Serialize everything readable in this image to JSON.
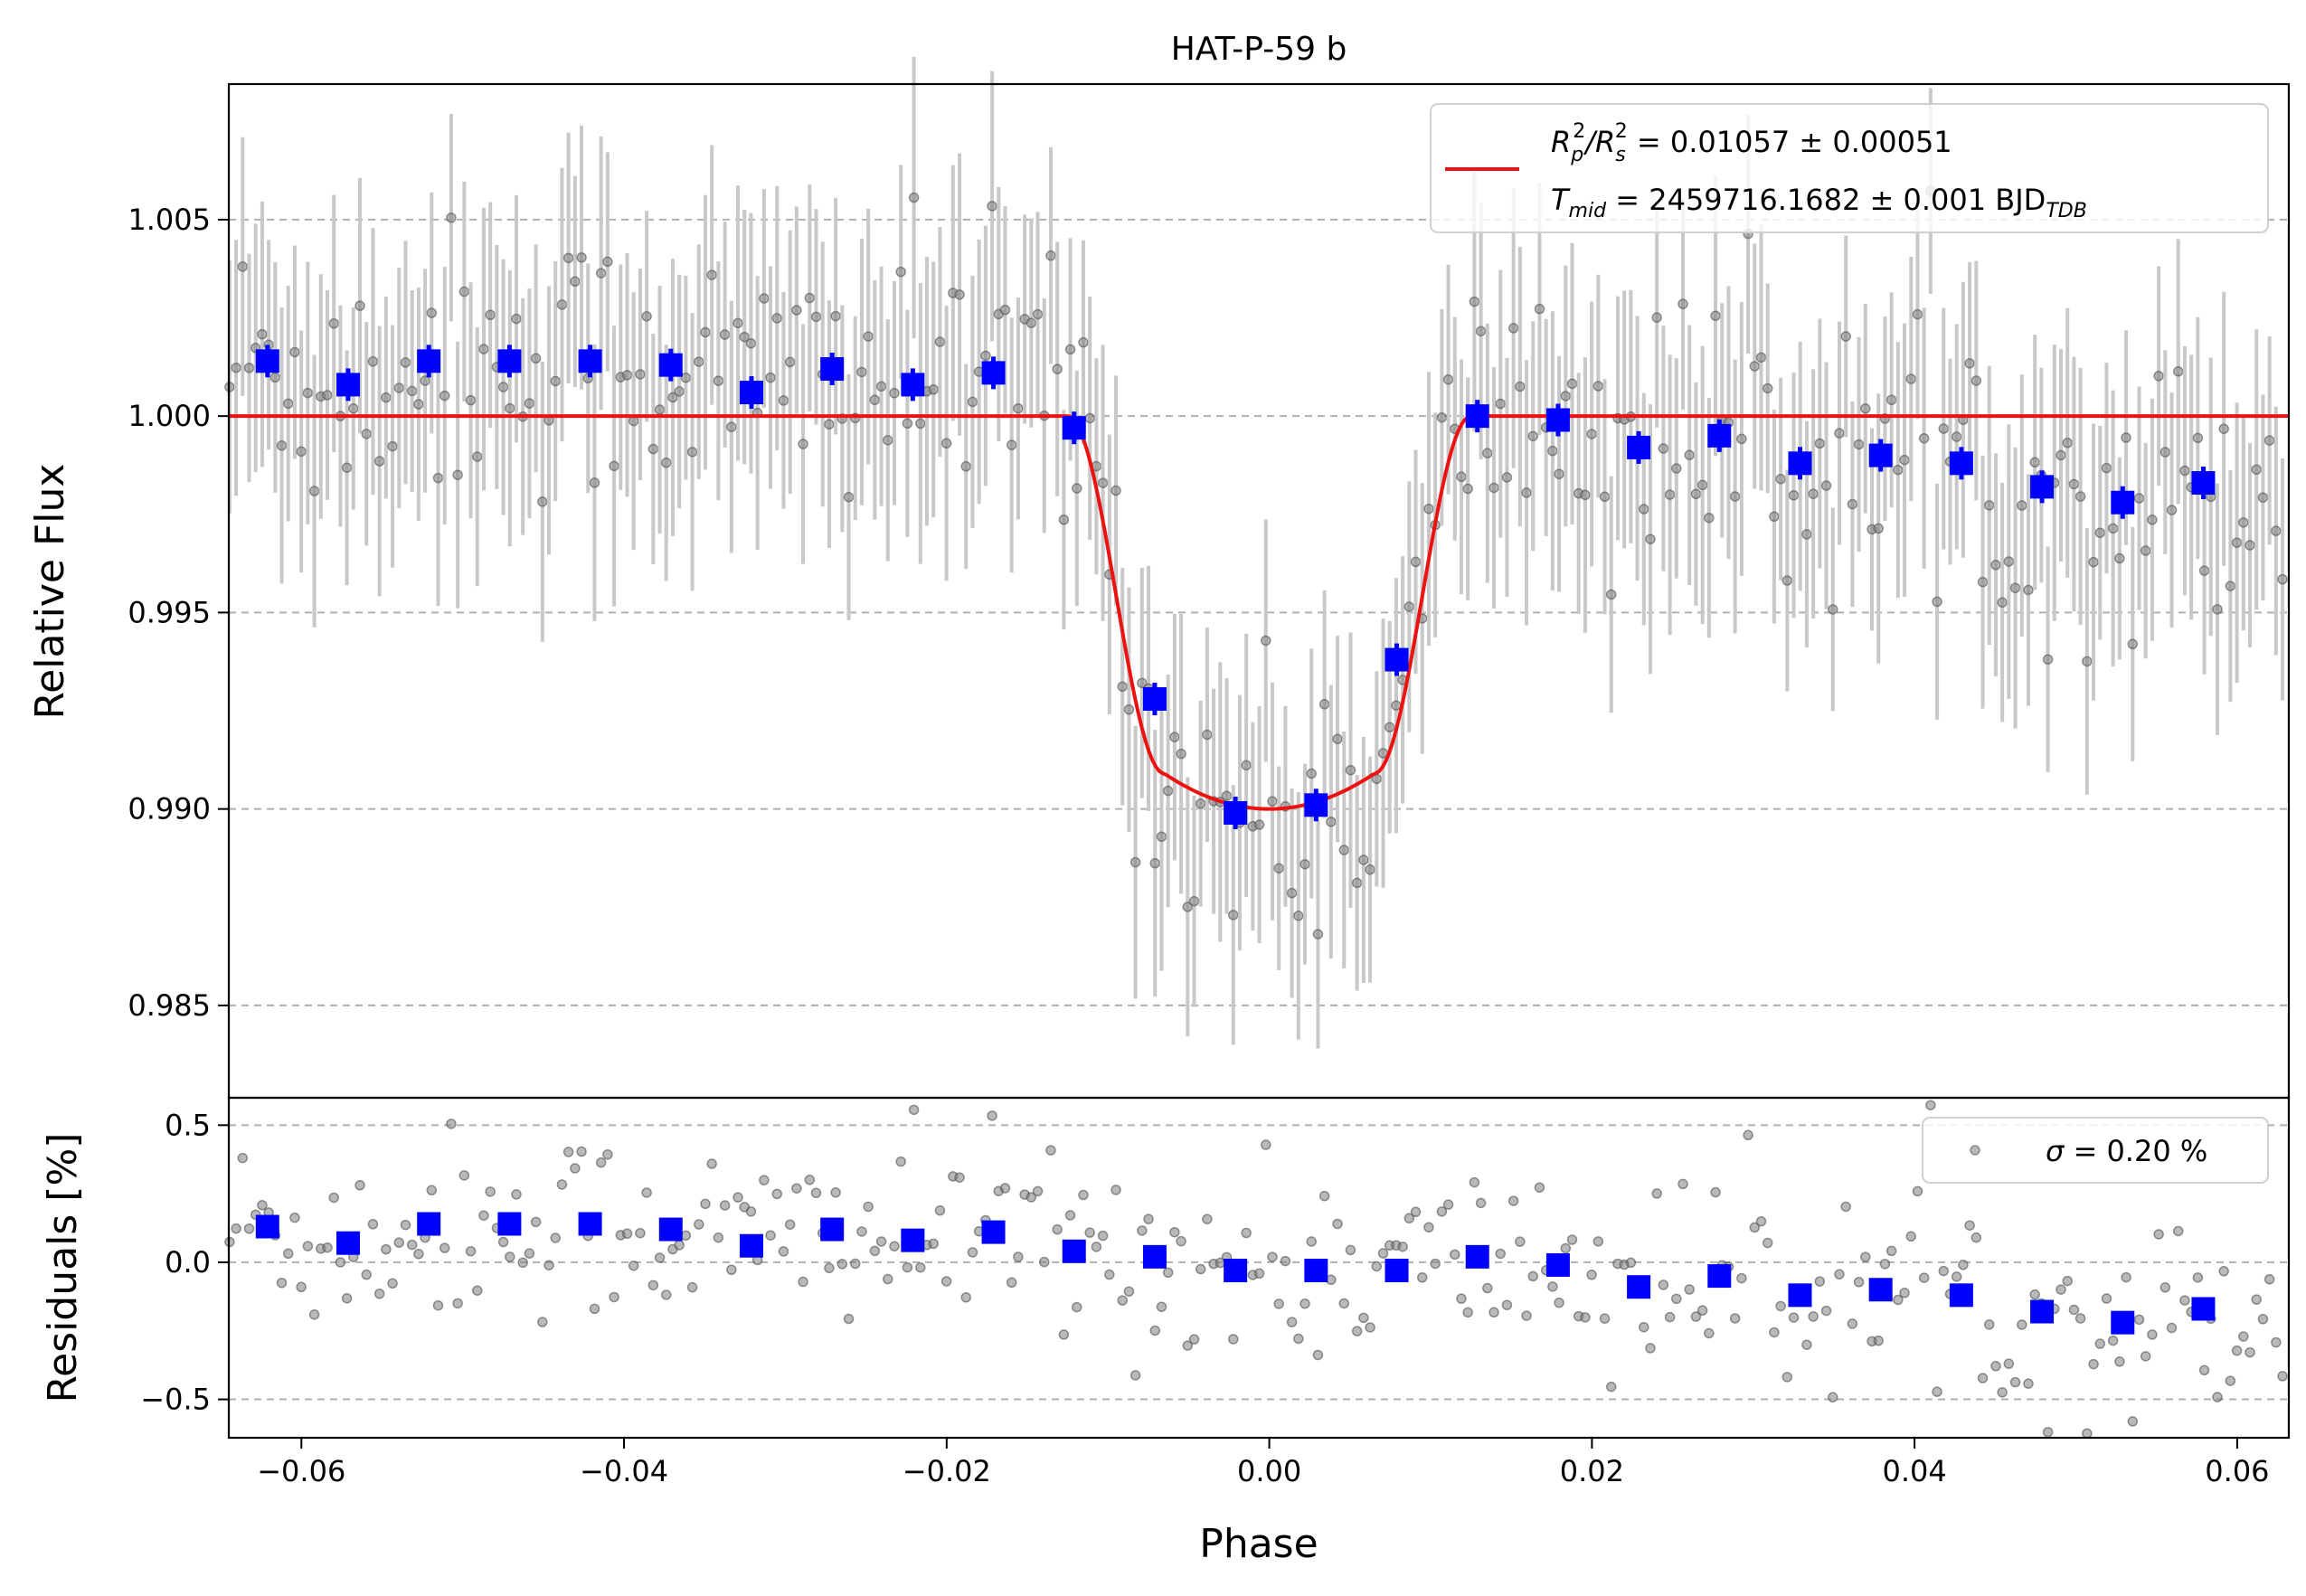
{
  "chart_data": [
    {
      "type": "scatter",
      "panel": "main",
      "title": "HAT-P-59 b",
      "xlabel": "Phase",
      "ylabel": "Relative Flux",
      "xlim": [
        -0.0645,
        0.0632
      ],
      "ylim": [
        0.98265,
        1.00845
      ],
      "xticks": [
        -0.06,
        -0.04,
        -0.02,
        0.0,
        0.02,
        0.04,
        0.06
      ],
      "xtick_labels": [
        "−0.06",
        "−0.04",
        "−0.02",
        "0.00",
        "0.02",
        "0.04",
        "0.06"
      ],
      "yticks": [
        0.985,
        0.99,
        0.995,
        1.0,
        1.005
      ],
      "ytick_labels": [
        "0.985",
        "0.990",
        "0.995",
        "1.000",
        "1.005"
      ],
      "grid": "horizontal dashed",
      "legend_position": "top-right",
      "legend": {
        "line1_prefix": "R",
        "line1_sub_p": "p",
        "line1_sup": "2",
        "line1_slash": "/R",
        "line1_sub_s": "s",
        "line1_value": " = 0.01057 ± 0.00051",
        "line2_prefix": "T",
        "line2_sub": "mid",
        "line2_value": " = 2459716.1682 ± 0.001 BJD",
        "line2_unit_sub": "TDB"
      },
      "model": {
        "color": "#ee1111",
        "baseline": 1.0,
        "depth": 0.01,
        "contact_points": [
          -0.0125,
          -0.0065,
          0.0065,
          0.0125
        ]
      },
      "binned": {
        "color": "#0000ff",
        "x": [
          -0.0621,
          -0.0571,
          -0.0521,
          -0.0471,
          -0.0421,
          -0.0371,
          -0.0321,
          -0.0271,
          -0.0221,
          -0.0171,
          -0.0121,
          -0.0071,
          -0.0021,
          0.0029,
          0.0079,
          0.0129,
          0.0179,
          0.0229,
          0.0279,
          0.0329,
          0.0379,
          0.0429,
          0.0479,
          0.0529,
          0.0579
        ],
        "y": [
          1.0014,
          1.0008,
          1.0014,
          1.0014,
          1.0014,
          1.0013,
          1.0006,
          1.0012,
          1.0008,
          1.0011,
          0.9997,
          0.9928,
          0.9899,
          0.9901,
          0.9938,
          1.0,
          0.9999,
          0.9992,
          0.9995,
          0.9988,
          0.999,
          0.9988,
          0.9982,
          0.9978,
          0.9983
        ]
      },
      "raw_points": {
        "color": "#808080",
        "errorbar_color": "#c8c8c8",
        "x_start": -0.0645,
        "x_step": 0.000404,
        "scatter_sigma": 0.002,
        "errorbar": 0.003
      }
    },
    {
      "type": "scatter",
      "panel": "residuals",
      "xlabel": "Phase",
      "ylabel": "Residuals [%]",
      "xlim": [
        -0.0645,
        0.0632
      ],
      "ylim": [
        -0.64,
        0.6
      ],
      "yticks": [
        -0.5,
        0.0,
        0.5
      ],
      "ytick_labels": [
        "−0.5",
        "0.0",
        "0.5"
      ],
      "grid": "horizontal dashed",
      "legend_position": "top-right",
      "legend": {
        "label": " = 0.20 %",
        "symbol": "σ"
      },
      "binned": {
        "color": "#0000ff",
        "x": [
          -0.0621,
          -0.0571,
          -0.0521,
          -0.0471,
          -0.0421,
          -0.0371,
          -0.0321,
          -0.0271,
          -0.0221,
          -0.0171,
          -0.0121,
          -0.0071,
          -0.0021,
          0.0029,
          0.0079,
          0.0129,
          0.0179,
          0.0229,
          0.0279,
          0.0329,
          0.0379,
          0.0429,
          0.0479,
          0.0529,
          0.0579
        ],
        "y": [
          0.13,
          0.07,
          0.14,
          0.14,
          0.14,
          0.12,
          0.06,
          0.12,
          0.08,
          0.11,
          0.04,
          0.02,
          -0.03,
          -0.03,
          -0.03,
          0.02,
          -0.01,
          -0.09,
          -0.05,
          -0.12,
          -0.1,
          -0.12,
          -0.18,
          -0.22,
          -0.17
        ]
      }
    }
  ]
}
